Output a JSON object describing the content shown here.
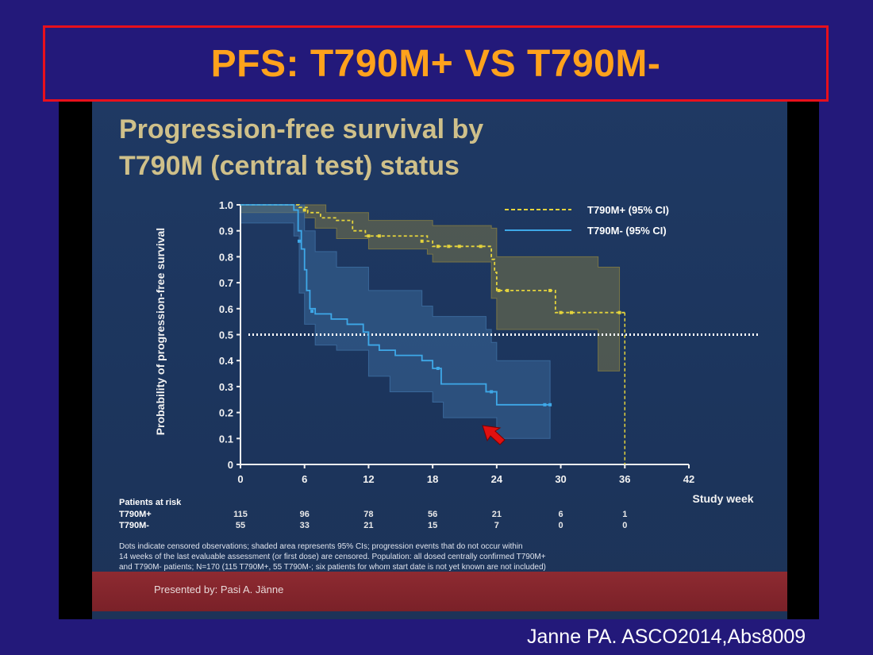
{
  "slide_title": "PFS: T790M+ VS T790M-",
  "slide_heading": {
    "line1": "Progression-free survival by",
    "line2": "T790M (central test) status"
  },
  "citation": "Janne PA. ASCO2014,Abs8009",
  "presenter": "Presented  by: Pasi A. Jänne",
  "footnote": [
    "Dots indicate censored observations; shaded area represents 95% CIs; progression events that do not occur within",
    "14 weeks of the last evaluable assessment (or first dose) are censored. Population: all dosed centrally confirmed T790M+",
    "and T790M- patients; N=170 (115 T790M+, 55 T790M-; six patients for whom start date is not yet known are not included)"
  ],
  "colors": {
    "title_text": "#ffa21c",
    "title_border": "#e8101c",
    "t790m_pos": "#e5d43c",
    "t790m_pos_ci": "#807a45",
    "t790m_neg": "#3ea8e8",
    "t790m_neg_ci": "#3c6c9e",
    "reference_line": "#ffffff"
  },
  "risk_table": {
    "title": "Patients at risk",
    "rows": [
      {
        "label": "T790M+",
        "values": [
          "115",
          "96",
          "78",
          "56",
          "21",
          "6",
          "1"
        ]
      },
      {
        "label": "T790M-",
        "values": [
          "55",
          "33",
          "21",
          "15",
          "7",
          "0",
          "0"
        ]
      }
    ]
  },
  "chart_data": {
    "type": "line",
    "subtype": "kaplan-meier step",
    "xlabel": "Study week",
    "ylabel": "Probability of progression-free survival",
    "xlim": [
      0,
      42
    ],
    "ylim": [
      0,
      1.0
    ],
    "x_ticks": [
      "0",
      "6",
      "12",
      "18",
      "24",
      "30",
      "36",
      "42"
    ],
    "y_ticks": [
      "0",
      "0.1",
      "0.2",
      "0.3",
      "0.4",
      "0.5",
      "0.6",
      "0.7",
      "0.8",
      "0.9",
      "1.0"
    ],
    "legend_position": "top-right",
    "grid": false,
    "reference_line": {
      "y": 0.5,
      "style": "dotted"
    },
    "series": [
      {
        "name": "T790M+ (95% CI)",
        "line_style": "dashed",
        "steps": [
          [
            0,
            1.0
          ],
          [
            5.5,
            0.99
          ],
          [
            6.3,
            0.97
          ],
          [
            7.5,
            0.95
          ],
          [
            9,
            0.94
          ],
          [
            10.5,
            0.9
          ],
          [
            11.7,
            0.88
          ],
          [
            17.5,
            0.86
          ],
          [
            18,
            0.84
          ],
          [
            23.5,
            0.79
          ],
          [
            23.8,
            0.74
          ],
          [
            24,
            0.67
          ],
          [
            29,
            0.67
          ],
          [
            29.5,
            0.585
          ],
          [
            36,
            0.585
          ]
        ],
        "end_x": 36,
        "drop_to_zero_at": 36,
        "censored": [
          [
            6,
            0.98
          ],
          [
            12,
            0.88
          ],
          [
            13,
            0.88
          ],
          [
            17,
            0.86
          ],
          [
            18.5,
            0.84
          ],
          [
            19.5,
            0.84
          ],
          [
            20.5,
            0.84
          ],
          [
            22.5,
            0.84
          ],
          [
            24.2,
            0.67
          ],
          [
            25,
            0.67
          ],
          [
            29,
            0.67
          ],
          [
            30,
            0.585
          ],
          [
            31,
            0.585
          ],
          [
            35.5,
            0.585
          ]
        ],
        "ci_steps": {
          "upper": [
            [
              0,
              1.0
            ],
            [
              6,
              1.0
            ],
            [
              8,
              0.97
            ],
            [
              12,
              0.94
            ],
            [
              18,
              0.92
            ],
            [
              23.5,
              0.91
            ],
            [
              24,
              0.8
            ],
            [
              33,
              0.8
            ],
            [
              33.5,
              0.76
            ],
            [
              35.5,
              0.76
            ]
          ],
          "lower": [
            [
              0,
              0.97
            ],
            [
              6,
              0.95
            ],
            [
              7,
              0.91
            ],
            [
              9,
              0.87
            ],
            [
              12,
              0.83
            ],
            [
              17.5,
              0.81
            ],
            [
              18,
              0.78
            ],
            [
              23,
              0.78
            ],
            [
              23.5,
              0.64
            ],
            [
              24,
              0.52
            ],
            [
              33,
              0.52
            ],
            [
              33.5,
              0.36
            ],
            [
              35.5,
              0.36
            ]
          ]
        }
      },
      {
        "name": "T790M- (95% CI)",
        "line_style": "solid",
        "steps": [
          [
            0,
            1.0
          ],
          [
            5,
            0.98
          ],
          [
            5.4,
            0.9
          ],
          [
            5.7,
            0.83
          ],
          [
            6,
            0.75
          ],
          [
            6.2,
            0.67
          ],
          [
            6.5,
            0.6
          ],
          [
            7,
            0.58
          ],
          [
            8.5,
            0.56
          ],
          [
            10,
            0.54
          ],
          [
            11.5,
            0.51
          ],
          [
            12,
            0.46
          ],
          [
            13,
            0.44
          ],
          [
            14.5,
            0.42
          ],
          [
            17,
            0.4
          ],
          [
            18,
            0.37
          ],
          [
            18.8,
            0.31
          ],
          [
            23,
            0.28
          ],
          [
            24,
            0.23
          ],
          [
            29,
            0.23
          ]
        ],
        "end_x": 29,
        "censored": [
          [
            5.5,
            0.86
          ],
          [
            6.7,
            0.59
          ],
          [
            18.5,
            0.37
          ],
          [
            23.5,
            0.28
          ],
          [
            28.5,
            0.23
          ],
          [
            29,
            0.23
          ]
        ],
        "ci_steps": {
          "upper": [
            [
              0,
              1.0
            ],
            [
              5,
              1.0
            ],
            [
              6,
              0.9
            ],
            [
              7,
              0.82
            ],
            [
              9,
              0.76
            ],
            [
              12,
              0.67
            ],
            [
              17,
              0.61
            ],
            [
              18,
              0.57
            ],
            [
              23,
              0.52
            ],
            [
              23.5,
              0.47
            ],
            [
              24,
              0.4
            ],
            [
              29,
              0.4
            ]
          ],
          "lower": [
            [
              0,
              0.93
            ],
            [
              5,
              0.88
            ],
            [
              5.5,
              0.66
            ],
            [
              6,
              0.54
            ],
            [
              7,
              0.46
            ],
            [
              9,
              0.44
            ],
            [
              12,
              0.34
            ],
            [
              14,
              0.28
            ],
            [
              18,
              0.24
            ],
            [
              19,
              0.18
            ],
            [
              24,
              0.1
            ],
            [
              29,
              0.1
            ]
          ]
        }
      }
    ]
  }
}
